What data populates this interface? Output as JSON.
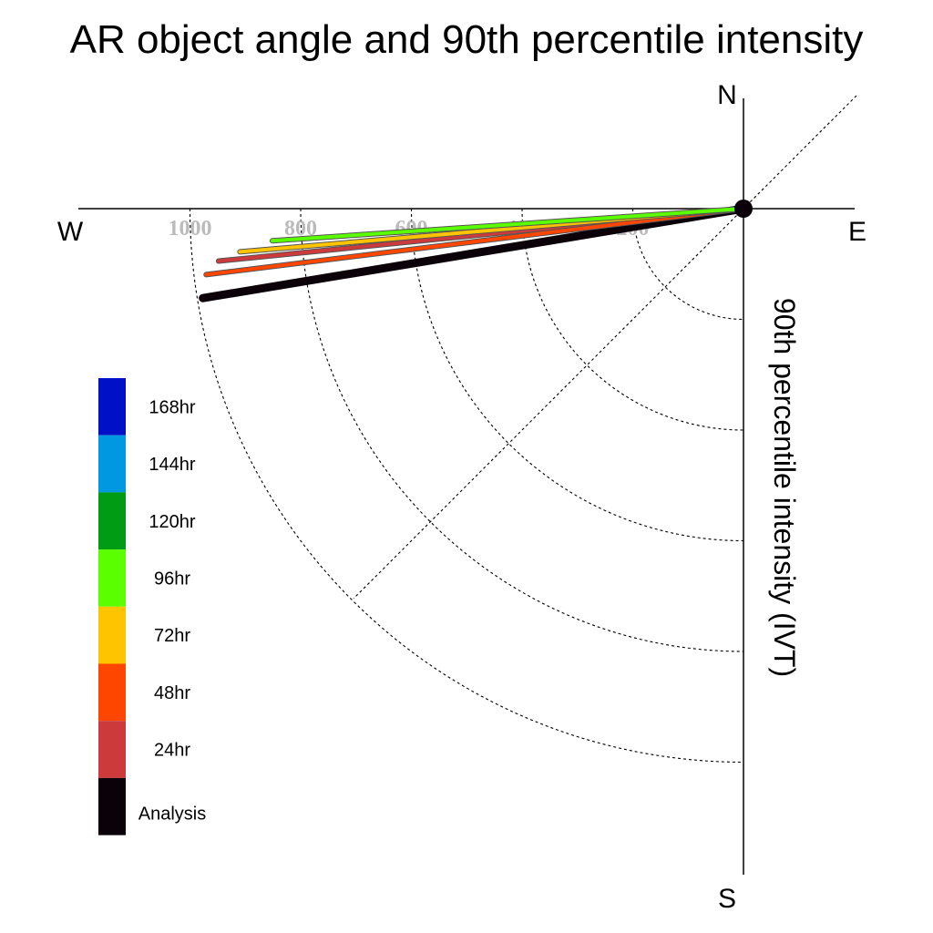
{
  "chart_data": {
    "type": "polar-vector",
    "title": "AR object angle and 90th percentile intensity",
    "ylabel": "90th percentile intensity (IVT)",
    "compass": {
      "north": "N",
      "south": "S",
      "east": "E",
      "west": "W"
    },
    "radial_ticks": [
      "200",
      "400",
      "600",
      "800",
      "1000"
    ],
    "radial_tick_values": [
      200,
      400,
      600,
      800,
      1000
    ],
    "radial_max": 1000,
    "grid": true,
    "series": [
      {
        "name": "Analysis",
        "color": "#0a0208",
        "angle_deg": 189.4,
        "intensity": 990
      },
      {
        "name": "24hr",
        "color": "#cc3a3c",
        "angle_deg": 185.7,
        "intensity": 953
      },
      {
        "name": "48hr",
        "color": "#ff4600",
        "angle_deg": 187.0,
        "intensity": 978
      },
      {
        "name": "72hr",
        "color": "#ffc400",
        "angle_deg": 184.9,
        "intensity": 913
      },
      {
        "name": "96hr",
        "color": "#5aff00",
        "angle_deg": 183.9,
        "intensity": 853
      },
      {
        "name": "120hr",
        "color": "#009c14",
        "angle_deg": null,
        "intensity": null
      },
      {
        "name": "144hr",
        "color": "#0098e0",
        "angle_deg": null,
        "intensity": null
      },
      {
        "name": "168hr",
        "color": "#0010c6",
        "angle_deg": null,
        "intensity": null
      }
    ],
    "legend": [
      "168hr",
      "144hr",
      "120hr",
      "96hr",
      "72hr",
      "48hr",
      "24hr",
      "Analysis"
    ],
    "legend_placement": "left"
  }
}
